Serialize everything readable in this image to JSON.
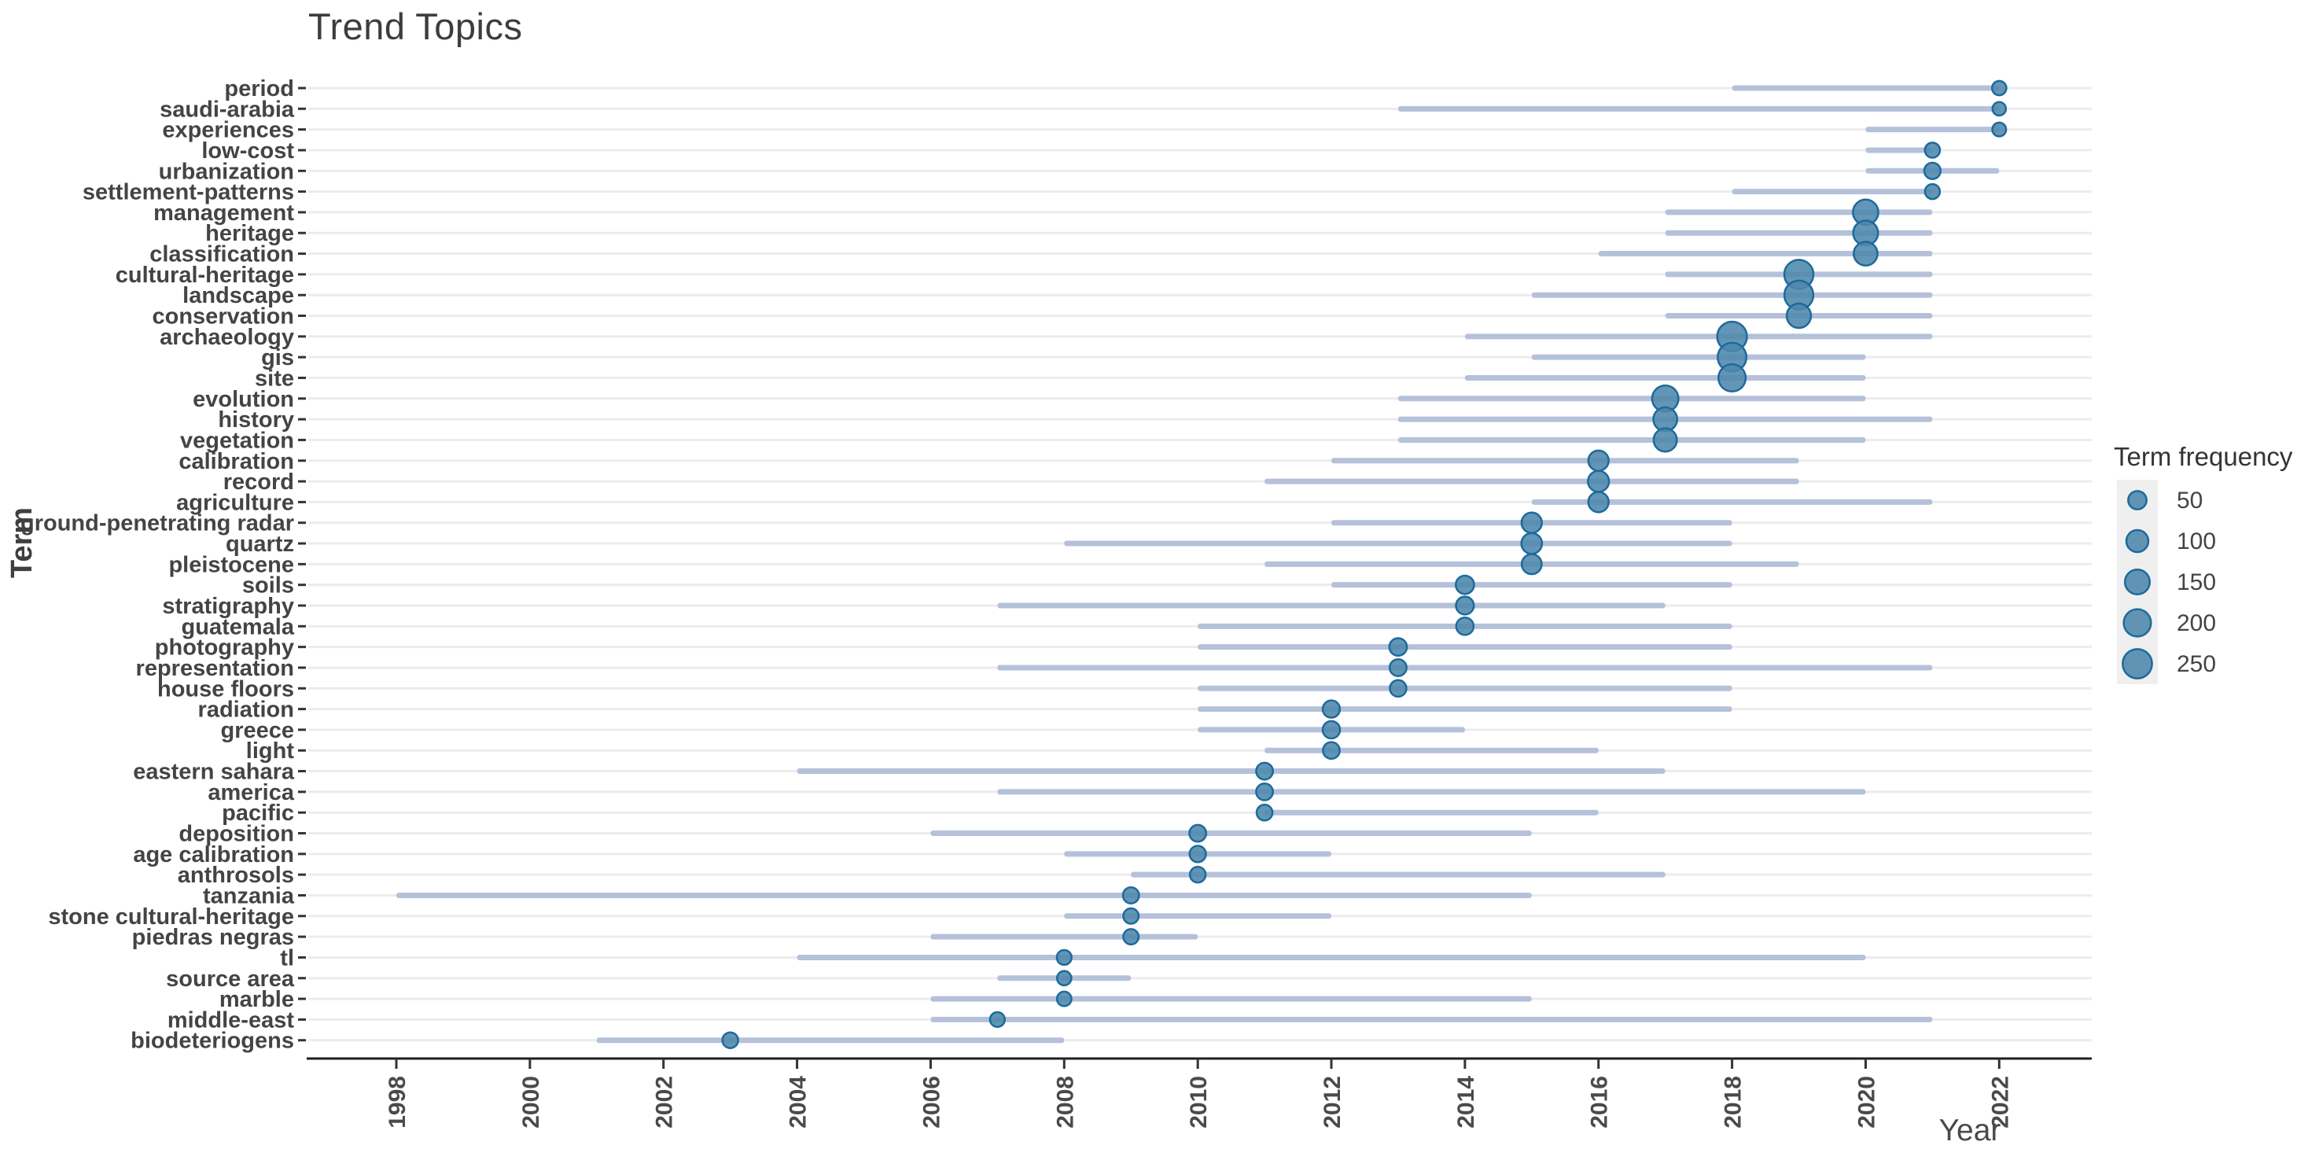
{
  "header": {
    "title": "Trend Topics"
  },
  "axes": {
    "x_label": "Year",
    "y_label": "Term",
    "x_ticks": [
      1998,
      2000,
      2002,
      2004,
      2006,
      2008,
      2010,
      2012,
      2014,
      2016,
      2018,
      2020,
      2022
    ]
  },
  "legend": {
    "title": "Term frequency",
    "values": [
      50,
      100,
      150,
      200,
      250
    ]
  },
  "colors": {
    "dot_fill": "#4d87ac",
    "dot_stroke": "#1d6a9b",
    "range_line": "#b5c1da",
    "grid": "#ececec",
    "axis_line": "#1f1f1f",
    "tick": "#333333",
    "legend_key_bg": "#efefef"
  },
  "chart_data": {
    "type": "scatter",
    "subtype": "trend-topics dot plot: per-term time range line with frequency-sized dot at peak year",
    "title": "Trend Topics",
    "xlabel": "Year",
    "ylabel": "Term",
    "xlim": [
      1996.7,
      2023.4
    ],
    "grid": "horizontal-only",
    "legend_position": "right",
    "terms": [
      {
        "term": "period",
        "start": 2018,
        "peak": 2022,
        "end": 2022,
        "freq": 15
      },
      {
        "term": "saudi-arabia",
        "start": 2013,
        "peak": 2022,
        "end": 2022,
        "freq": 10
      },
      {
        "term": "experiences",
        "start": 2020,
        "peak": 2022,
        "end": 2022,
        "freq": 12
      },
      {
        "term": "low-cost",
        "start": 2020,
        "peak": 2021,
        "end": 2021,
        "freq": 20
      },
      {
        "term": "urbanization",
        "start": 2020,
        "peak": 2021,
        "end": 2022,
        "freq": 30
      },
      {
        "term": "settlement-patterns",
        "start": 2018,
        "peak": 2021,
        "end": 2021,
        "freq": 19
      },
      {
        "term": "management",
        "start": 2017,
        "peak": 2020,
        "end": 2021,
        "freq": 160
      },
      {
        "term": "heritage",
        "start": 2017,
        "peak": 2020,
        "end": 2021,
        "freq": 150
      },
      {
        "term": "classification",
        "start": 2016,
        "peak": 2020,
        "end": 2021,
        "freq": 130
      },
      {
        "term": "cultural-heritage",
        "start": 2017,
        "peak": 2019,
        "end": 2021,
        "freq": 245
      },
      {
        "term": "landscape",
        "start": 2015,
        "peak": 2019,
        "end": 2021,
        "freq": 240
      },
      {
        "term": "conservation",
        "start": 2017,
        "peak": 2019,
        "end": 2021,
        "freq": 140
      },
      {
        "term": "archaeology",
        "start": 2014,
        "peak": 2018,
        "end": 2021,
        "freq": 260
      },
      {
        "term": "gis",
        "start": 2015,
        "peak": 2018,
        "end": 2020,
        "freq": 235
      },
      {
        "term": "site",
        "start": 2014,
        "peak": 2018,
        "end": 2020,
        "freq": 200
      },
      {
        "term": "evolution",
        "start": 2013,
        "peak": 2017,
        "end": 2020,
        "freq": 180
      },
      {
        "term": "history",
        "start": 2013,
        "peak": 2017,
        "end": 2021,
        "freq": 130
      },
      {
        "term": "vegetation",
        "start": 2013,
        "peak": 2017,
        "end": 2020,
        "freq": 120
      },
      {
        "term": "calibration",
        "start": 2012,
        "peak": 2016,
        "end": 2019,
        "freq": 75
      },
      {
        "term": "record",
        "start": 2011,
        "peak": 2016,
        "end": 2019,
        "freq": 85
      },
      {
        "term": "agriculture",
        "start": 2015,
        "peak": 2016,
        "end": 2021,
        "freq": 75
      },
      {
        "term": "ground-penetrating radar",
        "start": 2012,
        "peak": 2015,
        "end": 2018,
        "freq": 75
      },
      {
        "term": "quartz",
        "start": 2008,
        "peak": 2015,
        "end": 2018,
        "freq": 80
      },
      {
        "term": "pleistocene",
        "start": 2011,
        "peak": 2015,
        "end": 2019,
        "freq": 70
      },
      {
        "term": "soils",
        "start": 2012,
        "peak": 2014,
        "end": 2018,
        "freq": 50
      },
      {
        "term": "stratigraphy",
        "start": 2007,
        "peak": 2014,
        "end": 2017,
        "freq": 45
      },
      {
        "term": "guatemala",
        "start": 2010,
        "peak": 2014,
        "end": 2018,
        "freq": 40
      },
      {
        "term": "photography",
        "start": 2010,
        "peak": 2013,
        "end": 2018,
        "freq": 42
      },
      {
        "term": "representation",
        "start": 2007,
        "peak": 2013,
        "end": 2021,
        "freq": 35
      },
      {
        "term": "house floors",
        "start": 2010,
        "peak": 2013,
        "end": 2018,
        "freq": 32
      },
      {
        "term": "radiation",
        "start": 2010,
        "peak": 2012,
        "end": 2018,
        "freq": 38
      },
      {
        "term": "greece",
        "start": 2010,
        "peak": 2012,
        "end": 2014,
        "freq": 40
      },
      {
        "term": "light",
        "start": 2011,
        "peak": 2012,
        "end": 2016,
        "freq": 34
      },
      {
        "term": "eastern sahara",
        "start": 2004,
        "peak": 2011,
        "end": 2017,
        "freq": 34
      },
      {
        "term": "america",
        "start": 2007,
        "peak": 2011,
        "end": 2020,
        "freq": 34
      },
      {
        "term": "pacific",
        "start": 2011,
        "peak": 2011,
        "end": 2016,
        "freq": 26
      },
      {
        "term": "deposition",
        "start": 2006,
        "peak": 2010,
        "end": 2015,
        "freq": 34
      },
      {
        "term": "age calibration",
        "start": 2008,
        "peak": 2010,
        "end": 2012,
        "freq": 30
      },
      {
        "term": "anthrosols",
        "start": 2009,
        "peak": 2010,
        "end": 2017,
        "freq": 25
      },
      {
        "term": "tanzania",
        "start": 1998,
        "peak": 2009,
        "end": 2015,
        "freq": 28
      },
      {
        "term": "stone cultural-heritage",
        "start": 2008,
        "peak": 2009,
        "end": 2012,
        "freq": 22
      },
      {
        "term": "piedras negras",
        "start": 2006,
        "peak": 2009,
        "end": 2010,
        "freq": 22
      },
      {
        "term": "tl",
        "start": 2004,
        "peak": 2008,
        "end": 2020,
        "freq": 18
      },
      {
        "term": "source area",
        "start": 2007,
        "peak": 2008,
        "end": 2009,
        "freq": 15
      },
      {
        "term": "marble",
        "start": 2006,
        "peak": 2008,
        "end": 2015,
        "freq": 16
      },
      {
        "term": "middle-east",
        "start": 2006,
        "peak": 2007,
        "end": 2021,
        "freq": 18
      },
      {
        "term": "biodeteriogens",
        "start": 2001,
        "peak": 2003,
        "end": 2008,
        "freq": 25
      }
    ]
  }
}
